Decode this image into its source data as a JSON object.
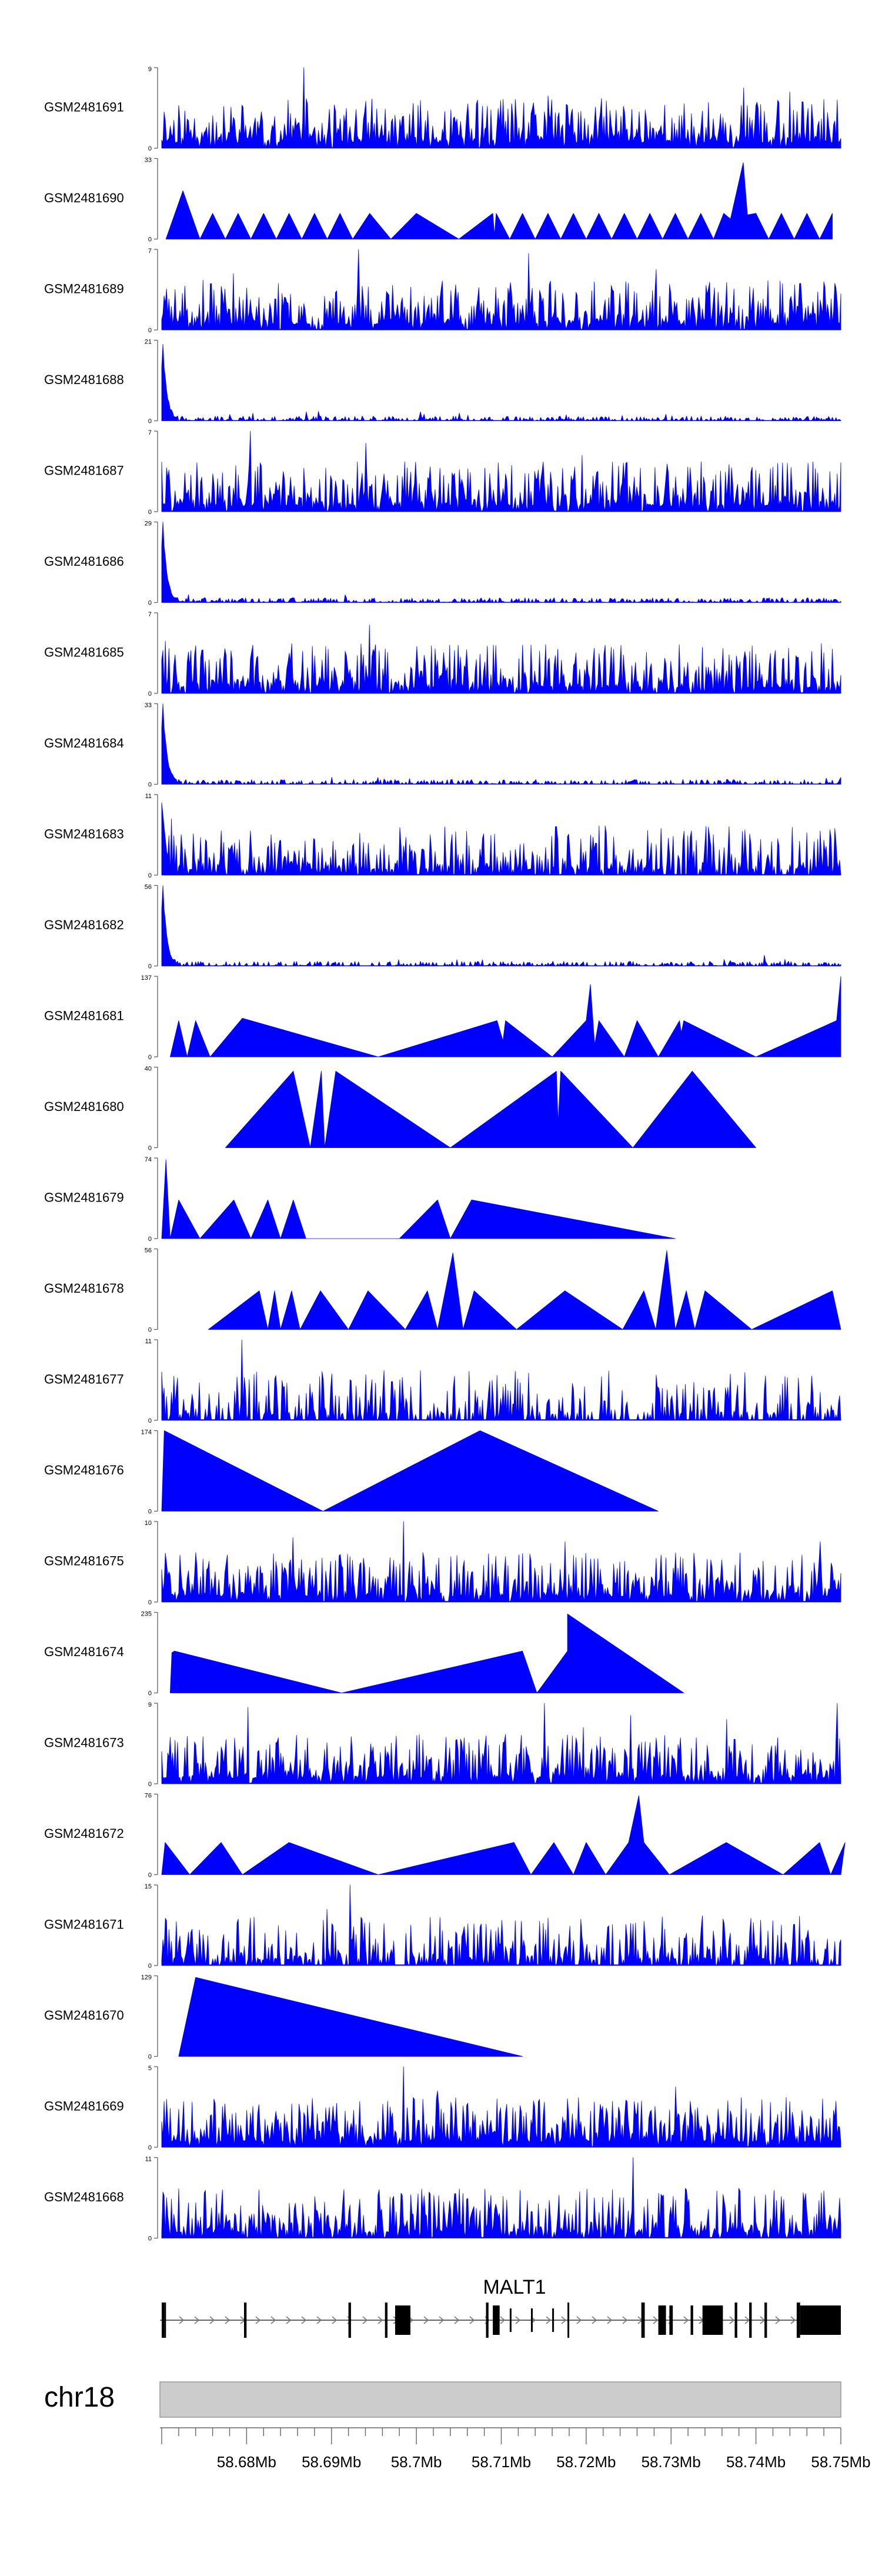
{
  "chart_data": {
    "type": "area",
    "chromosome": "chr18",
    "gene": "MALT1",
    "x_range_mb": [
      58.67,
      58.75
    ],
    "x_ticks": [
      "58.68Mb",
      "58.69Mb",
      "58.7Mb",
      "58.71Mb",
      "58.72Mb",
      "58.73Mb",
      "58.74Mb",
      "58.75Mb"
    ],
    "track_color": "#0000ff",
    "tracks": [
      {
        "name": "GSM2481691",
        "ymax": 9,
        "style": "dense",
        "seed": 11,
        "density": 0.95,
        "decay": 0.0,
        "peaks": [
          [
            58.6867,
            1.0
          ],
          [
            58.7385,
            0.75
          ],
          [
            58.744,
            0.7
          ],
          [
            58.7495,
            0.6
          ],
          [
            58.7155,
            0.65
          ]
        ]
      },
      {
        "name": "GSM2481690",
        "ymax": 33,
        "style": "tri",
        "pts": [
          [
            58.6705,
            0
          ],
          [
            58.6725,
            0.6
          ],
          [
            58.6745,
            0
          ],
          [
            58.676,
            0.32
          ],
          [
            58.6775,
            0
          ],
          [
            58.679,
            0.32
          ],
          [
            58.6805,
            0
          ],
          [
            58.682,
            0.32
          ],
          [
            58.6835,
            0
          ],
          [
            58.685,
            0.32
          ],
          [
            58.6865,
            0
          ],
          [
            58.688,
            0.32
          ],
          [
            58.6895,
            0
          ],
          [
            58.691,
            0.32
          ],
          [
            58.6925,
            0
          ],
          [
            58.6945,
            0.32
          ],
          [
            58.697,
            0
          ],
          [
            58.7,
            0.32
          ],
          [
            58.705,
            0
          ],
          [
            58.709,
            0.32
          ],
          [
            58.7092,
            0.05
          ],
          [
            58.7094,
            0.32
          ],
          [
            58.711,
            0
          ],
          [
            58.7125,
            0.32
          ],
          [
            58.714,
            0
          ],
          [
            58.7155,
            0.32
          ],
          [
            58.717,
            0
          ],
          [
            58.7185,
            0.32
          ],
          [
            58.72,
            0
          ],
          [
            58.7215,
            0.32
          ],
          [
            58.723,
            0
          ],
          [
            58.7245,
            0.32
          ],
          [
            58.726,
            0
          ],
          [
            58.7275,
            0.32
          ],
          [
            58.729,
            0
          ],
          [
            58.7305,
            0.32
          ],
          [
            58.732,
            0
          ],
          [
            58.7335,
            0.32
          ],
          [
            58.735,
            0
          ],
          [
            58.7362,
            0.32
          ],
          [
            58.737,
            0.25
          ],
          [
            58.7385,
            0.95
          ],
          [
            58.739,
            0.3
          ],
          [
            58.74,
            0.32
          ],
          [
            58.7415,
            0
          ],
          [
            58.743,
            0.32
          ],
          [
            58.7445,
            0
          ],
          [
            58.746,
            0.32
          ],
          [
            58.7475,
            0
          ],
          [
            58.749,
            0.32
          ],
          [
            58.749,
            0
          ]
        ]
      },
      {
        "name": "GSM2481689",
        "ymax": 7,
        "style": "dense",
        "seed": 23,
        "density": 0.9,
        "decay": 0.0,
        "peaks": [
          [
            58.6932,
            1.0
          ],
          [
            58.7132,
            0.95
          ],
          [
            58.7282,
            0.75
          ],
          [
            58.6785,
            0.7
          ]
        ]
      },
      {
        "name": "GSM2481688",
        "ymax": 21,
        "style": "spike",
        "seed": 31,
        "lead": 0.95
      },
      {
        "name": "GSM2481687",
        "ymax": 7,
        "style": "dense",
        "seed": 41,
        "density": 0.9,
        "decay": 0.0,
        "peaks": [
          [
            58.6805,
            1.0
          ],
          [
            58.694,
            0.85
          ],
          [
            58.7195,
            0.7
          ],
          [
            58.7425,
            0.6
          ]
        ]
      },
      {
        "name": "GSM2481686",
        "ymax": 29,
        "style": "spike",
        "seed": 53,
        "lead": 1.0
      },
      {
        "name": "GSM2481685",
        "ymax": 7,
        "style": "dense",
        "seed": 61,
        "density": 0.85,
        "decay": 0.0,
        "peaks": [
          [
            58.6945,
            0.85
          ],
          [
            58.6705,
            0.65
          ],
          [
            58.7125,
            0.6
          ]
        ]
      },
      {
        "name": "GSM2481684",
        "ymax": 33,
        "style": "spike",
        "seed": 71,
        "lead": 1.0
      },
      {
        "name": "GSM2481683",
        "ymax": 11,
        "style": "dense",
        "seed": 83,
        "density": 0.75,
        "decay": 0.0,
        "lead": 0.9,
        "peaks": [
          [
            58.6712,
            0.7
          ]
        ]
      },
      {
        "name": "GSM2481682",
        "ymax": 56,
        "style": "spike",
        "seed": 97,
        "lead": 1.0
      },
      {
        "name": "GSM2481681",
        "ymax": 137,
        "style": "tri",
        "pts": [
          [
            58.671,
            0
          ],
          [
            58.672,
            0.45
          ],
          [
            58.673,
            0
          ],
          [
            58.674,
            0.45
          ],
          [
            58.6757,
            0
          ],
          [
            58.6795,
            0.48
          ],
          [
            58.6955,
            0
          ],
          [
            58.7095,
            0.45
          ],
          [
            58.7102,
            0.2
          ],
          [
            58.7105,
            0.45
          ],
          [
            58.716,
            0
          ],
          [
            58.72,
            0.45
          ],
          [
            58.7205,
            0.9
          ],
          [
            58.721,
            0.15
          ],
          [
            58.7215,
            0.45
          ],
          [
            58.7245,
            0
          ],
          [
            58.726,
            0.45
          ],
          [
            58.7285,
            0
          ],
          [
            58.731,
            0.45
          ],
          [
            58.7312,
            0.3
          ],
          [
            58.7315,
            0.45
          ],
          [
            58.74,
            0
          ],
          [
            58.7495,
            0.45
          ],
          [
            58.75,
            1.0
          ],
          [
            58.75,
            0
          ]
        ]
      },
      {
        "name": "GSM2481680",
        "ymax": 40,
        "style": "tri",
        "pts": [
          [
            58.6775,
            0
          ],
          [
            58.6855,
            0.95
          ],
          [
            58.6875,
            0
          ],
          [
            58.6888,
            0.95
          ],
          [
            58.6892,
            0
          ],
          [
            58.6905,
            0.95
          ],
          [
            58.704,
            0
          ],
          [
            58.7165,
            0.95
          ],
          [
            58.7167,
            0.3
          ],
          [
            58.717,
            0.95
          ],
          [
            58.7255,
            0
          ],
          [
            58.7325,
            0.95
          ],
          [
            58.74,
            0
          ]
        ]
      },
      {
        "name": "GSM2481679",
        "ymax": 74,
        "style": "tri",
        "pts": [
          [
            58.67,
            0
          ],
          [
            58.6705,
            0.98
          ],
          [
            58.671,
            0
          ],
          [
            58.672,
            0.48
          ],
          [
            58.6745,
            0
          ],
          [
            58.6785,
            0.48
          ],
          [
            58.6805,
            0
          ],
          [
            58.6825,
            0.48
          ],
          [
            58.684,
            0
          ],
          [
            58.6855,
            0.48
          ],
          [
            58.687,
            0
          ],
          [
            58.698,
            0
          ],
          [
            58.7025,
            0.48
          ],
          [
            58.704,
            0
          ],
          [
            58.7065,
            0.48
          ],
          [
            58.7305,
            0
          ]
        ]
      },
      {
        "name": "GSM2481678",
        "ymax": 56,
        "style": "tri",
        "pts": [
          [
            58.6755,
            0
          ],
          [
            58.6815,
            0.48
          ],
          [
            58.6825,
            0
          ],
          [
            58.6833,
            0.48
          ],
          [
            58.684,
            0
          ],
          [
            58.6853,
            0.48
          ],
          [
            58.6863,
            0
          ],
          [
            58.6887,
            0.48
          ],
          [
            58.692,
            0
          ],
          [
            58.6943,
            0.48
          ],
          [
            58.6987,
            0
          ],
          [
            58.7013,
            0.48
          ],
          [
            58.7025,
            0
          ],
          [
            58.7043,
            0.95
          ],
          [
            58.7055,
            0
          ],
          [
            58.7068,
            0.48
          ],
          [
            58.7118,
            0
          ],
          [
            58.7175,
            0.48
          ],
          [
            58.7243,
            0
          ],
          [
            58.7268,
            0.48
          ],
          [
            58.7282,
            0
          ],
          [
            58.7295,
            0.98
          ],
          [
            58.7305,
            0
          ],
          [
            58.7318,
            0.48
          ],
          [
            58.7328,
            0
          ],
          [
            58.734,
            0.48
          ],
          [
            58.7395,
            0
          ],
          [
            58.749,
            0.48
          ],
          [
            58.75,
            0
          ]
        ]
      },
      {
        "name": "GSM2481677",
        "ymax": 11,
        "style": "dense",
        "seed": 107,
        "density": 0.55,
        "decay": 0.0,
        "peaks": [
          [
            58.6795,
            1.0
          ],
          [
            58.6812,
            0.6
          ],
          [
            58.6703,
            0.4
          ],
          [
            58.7085,
            0.35
          ],
          [
            58.7105,
            0.45
          ]
        ]
      },
      {
        "name": "GSM2481676",
        "ymax": 174,
        "style": "tri",
        "pts": [
          [
            58.67,
            0
          ],
          [
            58.6703,
            1.0
          ],
          [
            58.689,
            0
          ],
          [
            58.7075,
            1.0
          ],
          [
            58.7285,
            0
          ]
        ]
      },
      {
        "name": "GSM2481675",
        "ymax": 10,
        "style": "dense",
        "seed": 127,
        "density": 0.85,
        "decay": 0.0,
        "peaks": [
          [
            58.6985,
            1.0
          ],
          [
            58.6855,
            0.8
          ],
          [
            58.7175,
            0.75
          ],
          [
            58.7475,
            0.75
          ],
          [
            58.7085,
            0.6
          ]
        ]
      },
      {
        "name": "GSM2481674",
        "ymax": 235,
        "style": "tri",
        "pts": [
          [
            58.671,
            0
          ],
          [
            58.6712,
            0.5
          ],
          [
            58.6715,
            0.52
          ],
          [
            58.6912,
            0
          ],
          [
            58.7125,
            0.52
          ],
          [
            58.7142,
            0
          ],
          [
            58.7178,
            0.52
          ],
          [
            58.7178,
            0.98
          ],
          [
            58.7315,
            0
          ]
        ]
      },
      {
        "name": "GSM2481673",
        "ymax": 9,
        "style": "dense",
        "seed": 149,
        "density": 0.9,
        "decay": 0.0,
        "peaks": [
          [
            58.7151,
            1.0
          ],
          [
            58.6801,
            0.95
          ],
          [
            58.7495,
            1.0
          ],
          [
            58.7365,
            0.8
          ],
          [
            58.7252,
            0.85
          ],
          [
            58.7196,
            0.7
          ]
        ]
      },
      {
        "name": "GSM2481672",
        "ymax": 76,
        "style": "tri",
        "pts": [
          [
            58.67,
            0
          ],
          [
            58.6704,
            0.4
          ],
          [
            58.6733,
            0
          ],
          [
            58.677,
            0.4
          ],
          [
            58.6795,
            0
          ],
          [
            58.685,
            0.4
          ],
          [
            58.6955,
            0
          ],
          [
            58.7115,
            0.4
          ],
          [
            58.7135,
            0
          ],
          [
            58.7162,
            0.4
          ],
          [
            58.7185,
            0
          ],
          [
            58.72,
            0.4
          ],
          [
            58.7223,
            0
          ],
          [
            58.725,
            0.4
          ],
          [
            58.7262,
            0.98
          ],
          [
            58.7268,
            0.4
          ],
          [
            58.7298,
            0
          ],
          [
            58.7365,
            0.4
          ],
          [
            58.7432,
            0
          ],
          [
            58.7475,
            0.4
          ],
          [
            58.7488,
            0
          ],
          [
            58.7505,
            0.4
          ],
          [
            58.75,
            0
          ]
        ]
      },
      {
        "name": "GSM2481671",
        "ymax": 15,
        "style": "dense",
        "seed": 163,
        "density": 0.7,
        "decay": 0.0,
        "peaks": [
          [
            58.6922,
            1.0
          ],
          [
            58.6895,
            0.7
          ],
          [
            58.6935,
            0.6
          ],
          [
            58.7145,
            0.55
          ]
        ]
      },
      {
        "name": "GSM2481670",
        "ymax": 129,
        "style": "tri",
        "pts": [
          [
            58.672,
            0
          ],
          [
            58.674,
            0.98
          ],
          [
            58.7125,
            0
          ]
        ]
      },
      {
        "name": "GSM2481669",
        "ymax": 5,
        "style": "dense",
        "seed": 181,
        "density": 0.95,
        "decay": 0.0,
        "peaks": [
          [
            58.6985,
            1.0
          ],
          [
            58.7025,
            0.7
          ],
          [
            58.7305,
            0.75
          ]
        ]
      },
      {
        "name": "GSM2481668",
        "ymax": 11,
        "style": "dense",
        "seed": 197,
        "density": 0.8,
        "decay": 0.0,
        "peaks": [
          [
            58.7255,
            1.0
          ],
          [
            58.6765,
            0.55
          ],
          [
            58.7045,
            0.55
          ]
        ]
      }
    ]
  }
}
